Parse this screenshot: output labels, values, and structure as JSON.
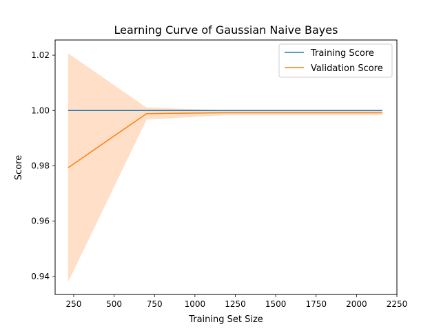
{
  "chart_data": {
    "type": "line",
    "title": "Learning Curve of Gaussian Naive Bayes",
    "xlabel": "Training Set Size",
    "ylabel": "Score",
    "xlim": [
      135,
      2250
    ],
    "ylim": [
      0.9335,
      1.0255
    ],
    "xticks": [
      250,
      500,
      750,
      1000,
      1250,
      1500,
      1750,
      2000,
      2250
    ],
    "yticks": [
      0.94,
      0.96,
      0.98,
      1.0,
      1.02
    ],
    "ytick_labels": [
      "0.94",
      "0.96",
      "0.98",
      "1.00",
      "1.02"
    ],
    "x": [
      215,
      701,
      1187,
      1673,
      2159
    ],
    "series": [
      {
        "name": "Training Score",
        "color": "#1f77b4",
        "values": [
          1.0,
          1.0,
          1.0,
          1.0,
          1.0
        ],
        "band_lower": [
          1.0,
          1.0,
          1.0,
          1.0,
          1.0
        ],
        "band_upper": [
          1.0,
          1.0,
          1.0,
          1.0,
          1.0
        ],
        "band_color": "#1f77b4"
      },
      {
        "name": "Validation Score",
        "color": "#ff7f0e",
        "values": [
          0.9793,
          0.9989,
          0.9992,
          0.9992,
          0.9992
        ],
        "band_lower": [
          0.938,
          0.9967,
          0.9983,
          0.9983,
          0.9983
        ],
        "band_upper": [
          1.0207,
          1.0011,
          1.0001,
          1.0001,
          1.0001
        ],
        "band_color": "#ffdfc8"
      }
    ],
    "grid": false,
    "legend": "top-right"
  }
}
